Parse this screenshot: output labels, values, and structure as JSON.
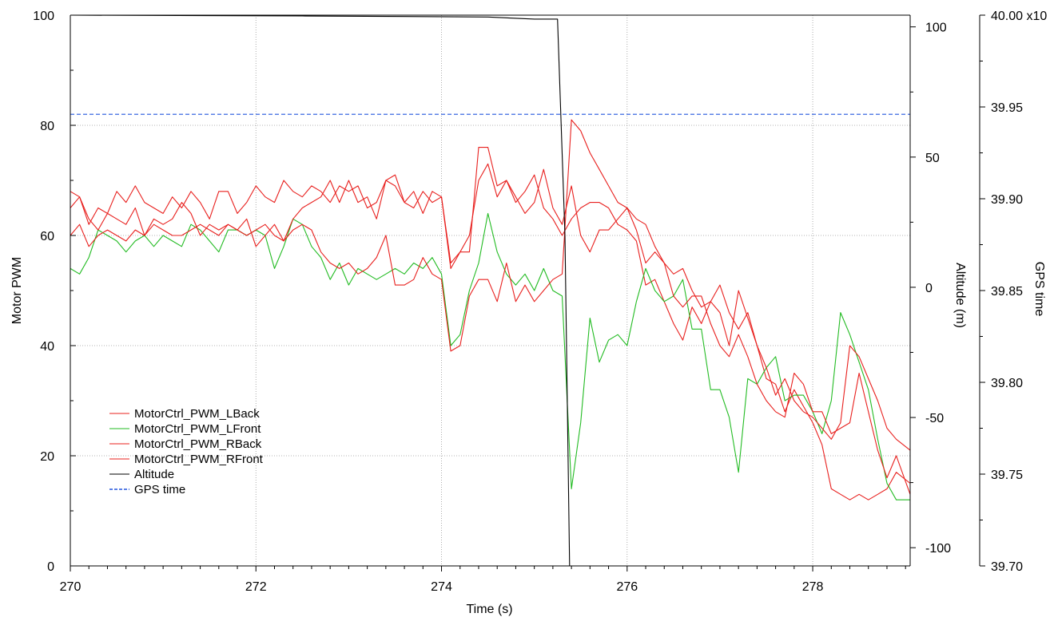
{
  "chart_data": {
    "type": "line",
    "xlabel": "Time (s)",
    "ylabel": "Motor PWM",
    "y2label": "Altitude (m)",
    "y3label": "GPS time",
    "xlim": [
      270,
      279.05
    ],
    "ylim": [
      0,
      100
    ],
    "y2lim": [
      -107,
      104.5
    ],
    "y3lim": [
      39.7,
      40.0
    ],
    "x_ticks": [
      270,
      272,
      274,
      276,
      278
    ],
    "x_tick_labels": [
      "270",
      "272",
      "274",
      "276",
      "278"
    ],
    "y_ticks": [
      0,
      20,
      40,
      60,
      80,
      100
    ],
    "y_tick_labels": [
      "0",
      "20",
      "40",
      "60",
      "80",
      "100"
    ],
    "y2_ticks": [
      -100,
      -50,
      0,
      50,
      100
    ],
    "y2_tick_labels": [
      "-100",
      "-50",
      "0",
      "50",
      "100"
    ],
    "y3_ticks": [
      39.7,
      39.75,
      39.8,
      39.85,
      39.9,
      39.95,
      40.0
    ],
    "y3_tick_labels": [
      "39.70",
      "39.75",
      "39.80",
      "39.85",
      "39.90",
      "39.95",
      "40.00 x10"
    ],
    "grid": true,
    "legend_position": "bottom-left",
    "series": [
      {
        "name": "MotorCtrl_PWM_LBack",
        "color": "#e8201e",
        "axis": "left",
        "x": [
          270.0,
          270.1,
          270.2,
          270.3,
          270.4,
          270.5,
          270.6,
          270.7,
          270.8,
          270.9,
          271.0,
          271.1,
          271.2,
          271.3,
          271.4,
          271.5,
          271.6,
          271.7,
          271.8,
          271.9,
          272.0,
          272.1,
          272.2,
          272.3,
          272.4,
          272.5,
          272.6,
          272.7,
          272.8,
          272.9,
          273.0,
          273.1,
          273.2,
          273.3,
          273.4,
          273.5,
          273.6,
          273.7,
          273.8,
          273.9,
          274.0,
          274.1,
          274.2,
          274.3,
          274.4,
          274.5,
          274.6,
          274.7,
          274.8,
          274.9,
          275.0,
          275.1,
          275.2,
          275.3,
          275.4,
          275.5,
          275.6,
          275.7,
          275.8,
          275.9,
          276.0,
          276.1,
          276.2,
          276.3,
          276.4,
          276.5,
          276.6,
          276.7,
          276.8,
          276.9,
          277.0,
          277.1,
          277.2,
          277.3,
          277.4,
          277.5,
          277.6,
          277.7,
          277.8,
          277.9,
          278.0,
          278.1,
          278.2,
          278.3,
          278.4,
          278.5,
          278.6,
          278.7,
          278.8,
          278.9,
          279.05
        ],
        "values": [
          68,
          67,
          62,
          65,
          64,
          68,
          66,
          69,
          66,
          65,
          64,
          67,
          65,
          68,
          66,
          63,
          68,
          68,
          64,
          66,
          69,
          67,
          66,
          70,
          68,
          67,
          69,
          68,
          66,
          69,
          68,
          69,
          65,
          66,
          70,
          69,
          66,
          68,
          64,
          68,
          67,
          55,
          57,
          57,
          76,
          76,
          69,
          70,
          66,
          68,
          71,
          65,
          63,
          60,
          63,
          65,
          66,
          66,
          65,
          62,
          61,
          59,
          51,
          52,
          48,
          44,
          41,
          47,
          44,
          48,
          51,
          46,
          43,
          46,
          40,
          34,
          33,
          28,
          32,
          29,
          26,
          22,
          14,
          13,
          12,
          13,
          12,
          13,
          14,
          17,
          15
        ]
      },
      {
        "name": "MotorCtrl_PWM_LFront",
        "color": "#22bb22",
        "axis": "left",
        "x": [
          270.0,
          270.1,
          270.2,
          270.3,
          270.4,
          270.5,
          270.6,
          270.7,
          270.8,
          270.9,
          271.0,
          271.1,
          271.2,
          271.3,
          271.4,
          271.5,
          271.6,
          271.7,
          271.8,
          271.9,
          272.0,
          272.1,
          272.2,
          272.3,
          272.4,
          272.5,
          272.6,
          272.7,
          272.8,
          272.9,
          273.0,
          273.1,
          273.2,
          273.3,
          273.4,
          273.5,
          273.6,
          273.7,
          273.8,
          273.9,
          274.0,
          274.1,
          274.2,
          274.3,
          274.4,
          274.5,
          274.6,
          274.7,
          274.8,
          274.9,
          275.0,
          275.1,
          275.2,
          275.3,
          275.4,
          275.5,
          275.6,
          275.7,
          275.8,
          275.9,
          276.0,
          276.1,
          276.2,
          276.3,
          276.4,
          276.5,
          276.6,
          276.7,
          276.8,
          276.9,
          277.0,
          277.1,
          277.2,
          277.3,
          277.4,
          277.5,
          277.6,
          277.7,
          277.8,
          277.9,
          278.0,
          278.1,
          278.2,
          278.3,
          278.4,
          278.5,
          278.6,
          278.7,
          278.8,
          278.9,
          279.05
        ],
        "values": [
          54,
          53,
          56,
          61,
          60,
          59,
          57,
          59,
          60,
          58,
          60,
          59,
          58,
          62,
          61,
          59,
          57,
          61,
          61,
          60,
          61,
          60,
          54,
          58,
          63,
          62,
          58,
          56,
          52,
          55,
          51,
          54,
          53,
          52,
          53,
          54,
          53,
          55,
          54,
          56,
          53,
          40,
          42,
          50,
          55,
          64,
          57,
          53,
          51,
          53,
          50,
          54,
          50,
          49,
          14,
          26,
          45,
          37,
          41,
          42,
          40,
          48,
          54,
          50,
          48,
          49,
          52,
          43,
          43,
          32,
          32,
          27,
          17,
          34,
          33,
          36,
          38,
          30,
          31,
          31,
          28,
          24,
          30,
          46,
          42,
          37,
          32,
          23,
          15,
          12,
          12
        ]
      },
      {
        "name": "MotorCtrl_PWM_RBack",
        "color": "#e8201e",
        "axis": "left",
        "x": [
          270.0,
          270.1,
          270.2,
          270.3,
          270.4,
          270.5,
          270.6,
          270.7,
          270.8,
          270.9,
          271.0,
          271.1,
          271.2,
          271.3,
          271.4,
          271.5,
          271.6,
          271.7,
          271.8,
          271.9,
          272.0,
          272.1,
          272.2,
          272.3,
          272.4,
          272.5,
          272.6,
          272.7,
          272.8,
          272.9,
          273.0,
          273.1,
          273.2,
          273.3,
          273.4,
          273.5,
          273.6,
          273.7,
          273.8,
          273.9,
          274.0,
          274.1,
          274.2,
          274.3,
          274.4,
          274.5,
          274.6,
          274.7,
          274.8,
          274.9,
          275.0,
          275.1,
          275.2,
          275.3,
          275.4,
          275.5,
          275.6,
          275.7,
          275.8,
          275.9,
          276.0,
          276.1,
          276.2,
          276.3,
          276.4,
          276.5,
          276.6,
          276.7,
          276.8,
          276.9,
          277.0,
          277.1,
          277.2,
          277.3,
          277.4,
          277.5,
          277.6,
          277.7,
          277.8,
          277.9,
          278.0,
          278.1,
          278.2,
          278.3,
          278.4,
          278.5,
          278.6,
          278.7,
          278.8,
          278.9,
          279.05
        ],
        "values": [
          65,
          67,
          63,
          61,
          64,
          63,
          62,
          65,
          60,
          63,
          62,
          63,
          66,
          64,
          60,
          62,
          61,
          62,
          61,
          63,
          58,
          60,
          62,
          59,
          63,
          65,
          66,
          67,
          70,
          66,
          70,
          66,
          67,
          63,
          70,
          71,
          66,
          65,
          68,
          66,
          67,
          54,
          57,
          60,
          70,
          73,
          67,
          70,
          67,
          64,
          66,
          72,
          65,
          62,
          69,
          60,
          57,
          61,
          61,
          63,
          65,
          61,
          55,
          57,
          55,
          49,
          47,
          49,
          49,
          44,
          40,
          38,
          42,
          38,
          33,
          30,
          28,
          27,
          35,
          33,
          28,
          28,
          24,
          25,
          26,
          35,
          28,
          21,
          16,
          20,
          13
        ]
      },
      {
        "name": "MotorCtrl_PWM_RFront",
        "color": "#e8201e",
        "axis": "left",
        "x": [
          270.0,
          270.1,
          270.2,
          270.3,
          270.4,
          270.5,
          270.6,
          270.7,
          270.8,
          270.9,
          271.0,
          271.1,
          271.2,
          271.3,
          271.4,
          271.5,
          271.6,
          271.7,
          271.8,
          271.9,
          272.0,
          272.1,
          272.2,
          272.3,
          272.4,
          272.5,
          272.6,
          272.7,
          272.8,
          272.9,
          273.0,
          273.1,
          273.2,
          273.3,
          273.4,
          273.5,
          273.6,
          273.7,
          273.8,
          273.9,
          274.0,
          274.1,
          274.2,
          274.3,
          274.4,
          274.5,
          274.6,
          274.7,
          274.8,
          274.9,
          275.0,
          275.1,
          275.2,
          275.3,
          275.4,
          275.5,
          275.6,
          275.7,
          275.8,
          275.9,
          276.0,
          276.1,
          276.2,
          276.3,
          276.4,
          276.5,
          276.6,
          276.7,
          276.8,
          276.9,
          277.0,
          277.1,
          277.2,
          277.3,
          277.4,
          277.5,
          277.6,
          277.7,
          277.8,
          277.9,
          278.0,
          278.1,
          278.2,
          278.3,
          278.4,
          278.5,
          278.6,
          278.7,
          278.8,
          278.9,
          279.05
        ],
        "values": [
          60,
          62,
          58,
          60,
          61,
          60,
          59,
          61,
          60,
          62,
          61,
          60,
          60,
          61,
          62,
          61,
          60,
          62,
          61,
          60,
          61,
          62,
          60,
          59,
          61,
          62,
          61,
          57,
          55,
          54,
          55,
          53,
          54,
          56,
          60,
          51,
          51,
          52,
          56,
          53,
          52,
          39,
          40,
          49,
          52,
          52,
          48,
          55,
          48,
          51,
          48,
          50,
          52,
          53,
          81,
          79,
          75,
          72,
          69,
          66,
          65,
          63,
          62,
          58,
          55,
          53,
          54,
          50,
          47,
          48,
          46,
          40,
          50,
          45,
          40,
          36,
          31,
          34,
          30,
          28,
          27,
          25,
          23,
          26,
          40,
          38,
          34,
          30,
          25,
          23,
          21
        ]
      },
      {
        "name": "Altitude",
        "color": "#000000",
        "axis": "right1",
        "x": [
          270.0,
          272.5,
          274.5,
          275.0,
          275.25,
          275.33,
          275.38,
          279.05
        ],
        "values": [
          104.5,
          104.2,
          103.8,
          103.0,
          103.0,
          20.0,
          -107.0,
          -107.0
        ]
      },
      {
        "name": "GPS time",
        "color": "#2255dd",
        "axis": "right2",
        "dashed": true,
        "x": [
          270.0,
          279.05
        ],
        "values": [
          39.946,
          39.946
        ]
      }
    ]
  }
}
